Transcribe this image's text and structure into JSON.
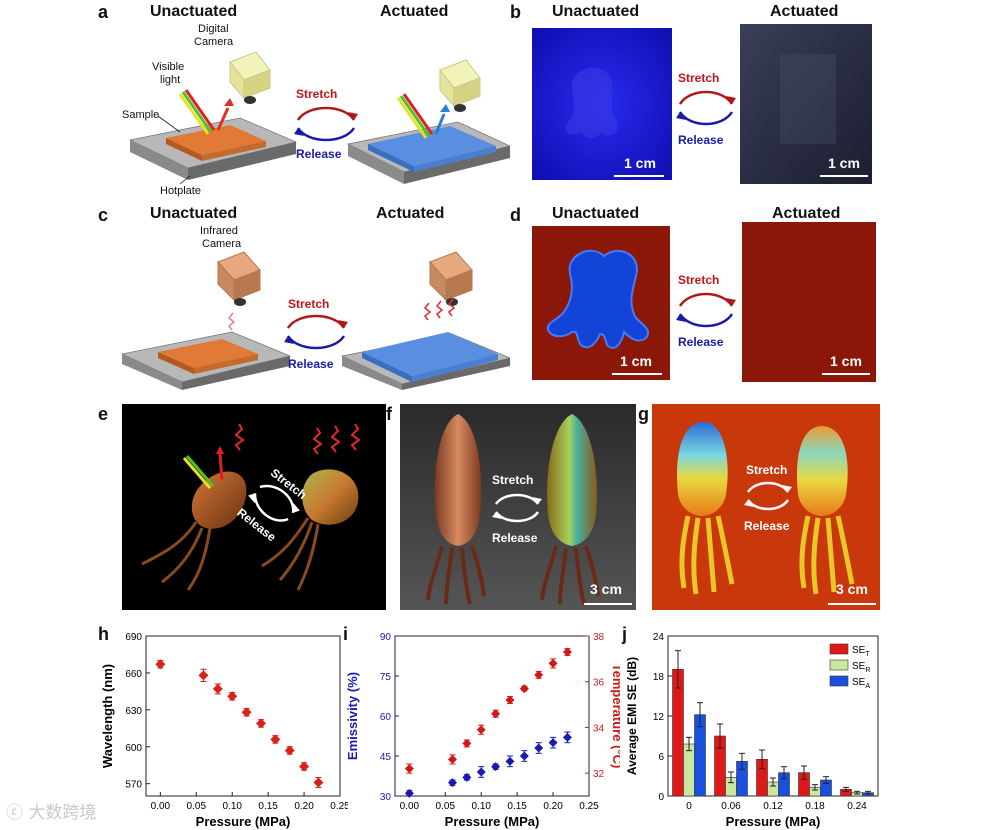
{
  "panels": {
    "a": {
      "letter": "a",
      "unactuated": "Unactuated",
      "actuated": "Actuated",
      "camera": "Digital\nCamera",
      "light": "Visible\nlight",
      "sample": "Sample",
      "hotplate": "Hotplate",
      "stretch": "Stretch",
      "release": "Release"
    },
    "b": {
      "letter": "b",
      "unactuated": "Unactuated",
      "actuated": "Actuated",
      "stretch": "Stretch",
      "release": "Release",
      "scale": "1 cm"
    },
    "c": {
      "letter": "c",
      "unactuated": "Unactuated",
      "actuated": "Actuated",
      "camera": "Infrared\nCamera",
      "stretch": "Stretch",
      "release": "Release"
    },
    "d": {
      "letter": "d",
      "unactuated": "Unactuated",
      "actuated": "Actuated",
      "stretch": "Stretch",
      "release": "Release",
      "scale": "1 cm"
    },
    "e": {
      "letter": "e",
      "stretch": "Stretch",
      "release": "Release"
    },
    "f": {
      "letter": "f",
      "stretch": "Stretch",
      "release": "Release",
      "scale": "3 cm"
    },
    "g": {
      "letter": "g",
      "stretch": "Stretch",
      "release": "Release",
      "scale": "3 cm"
    },
    "h": {
      "letter": "h"
    },
    "i": {
      "letter": "i"
    },
    "j": {
      "letter": "j"
    }
  },
  "colors": {
    "red": "#c0141a",
    "blue": "#1a1aa8",
    "green": "#c6e8a0",
    "sea_blue": "#2040d8",
    "thermal_bg": "#8b1708"
  },
  "watermark": "大数跨境",
  "chart_data": [
    {
      "panel": "h",
      "type": "scatter",
      "xlabel": "Pressure (MPa)",
      "ylabel": "Wavelength (nm)",
      "xlim": [
        -0.02,
        0.25
      ],
      "ylim": [
        560,
        690
      ],
      "xticks": [
        "0.00",
        "0.05",
        "0.10",
        "0.15",
        "0.20",
        "0.25"
      ],
      "yticks": [
        "570",
        "600",
        "630",
        "660",
        "690"
      ],
      "x": [
        0.0,
        0.06,
        0.08,
        0.1,
        0.12,
        0.14,
        0.16,
        0.18,
        0.2,
        0.22
      ],
      "y": [
        667,
        658,
        647,
        641,
        628,
        619,
        606,
        597,
        584,
        571
      ],
      "err": [
        3,
        5,
        4,
        3,
        3,
        3,
        3,
        3,
        3,
        4
      ],
      "color": "#d6241c",
      "marker": "diamond"
    },
    {
      "panel": "i",
      "type": "scatter",
      "xlabel": "Pressure (MPa)",
      "ylabel": "Emissivity (%)",
      "y2label": "Temperature (°C)",
      "xlim": [
        -0.02,
        0.25
      ],
      "ylim": [
        30,
        90
      ],
      "y2lim": [
        31,
        38
      ],
      "xticks": [
        "0.00",
        "0.05",
        "0.10",
        "0.15",
        "0.20",
        "0.25"
      ],
      "yticks": [
        "30",
        "45",
        "60",
        "75",
        "90"
      ],
      "y2ticks": [
        "32",
        "34",
        "36",
        "38"
      ],
      "series": [
        {
          "name": "Emissivity",
          "axis": "left",
          "color": "#1a1ab0",
          "x": [
            0.0,
            0.06,
            0.08,
            0.1,
            0.12,
            0.14,
            0.16,
            0.18,
            0.2,
            0.22
          ],
          "y": [
            31,
            35,
            37,
            39,
            41,
            43,
            45,
            48,
            50,
            52
          ],
          "err": [
            1,
            1,
            1,
            2,
            1,
            2,
            2,
            2,
            2,
            2
          ]
        },
        {
          "name": "Temperature",
          "axis": "right",
          "color": "#d01818",
          "x": [
            0.0,
            0.06,
            0.08,
            0.1,
            0.12,
            0.14,
            0.16,
            0.18,
            0.2,
            0.22
          ],
          "y": [
            32.2,
            32.6,
            33.3,
            33.9,
            34.6,
            35.2,
            35.7,
            36.3,
            36.8,
            37.3
          ],
          "err": [
            0.2,
            0.2,
            0.15,
            0.2,
            0.15,
            0.15,
            0.1,
            0.15,
            0.2,
            0.15
          ]
        }
      ]
    },
    {
      "panel": "j",
      "type": "bar",
      "xlabel": "Pressure (MPa)",
      "ylabel": "Average EMI SE (dB)",
      "ylim": [
        0,
        24
      ],
      "yticks": [
        "0",
        "6",
        "12",
        "18",
        "24"
      ],
      "categories": [
        "0",
        "0.06",
        "0.12",
        "0.18",
        "0.24"
      ],
      "legend_position": "top-right",
      "series": [
        {
          "name": "SE",
          "sub": "T",
          "color": "#e01818",
          "values": [
            19,
            9,
            5.5,
            3.5,
            1
          ],
          "err": [
            2.8,
            1.8,
            1.4,
            1.0,
            0.3
          ]
        },
        {
          "name": "SE",
          "sub": "R",
          "color": "#c8e8a0",
          "values": [
            7.8,
            2.8,
            2.1,
            1.3,
            0.5
          ],
          "err": [
            1.0,
            0.8,
            0.6,
            0.4,
            0.2
          ]
        },
        {
          "name": "SE",
          "sub": "A",
          "color": "#1a50e0",
          "values": [
            12.2,
            5.2,
            3.5,
            2.4,
            0.5
          ],
          "err": [
            1.8,
            1.2,
            0.9,
            0.5,
            0.2
          ]
        }
      ]
    }
  ]
}
